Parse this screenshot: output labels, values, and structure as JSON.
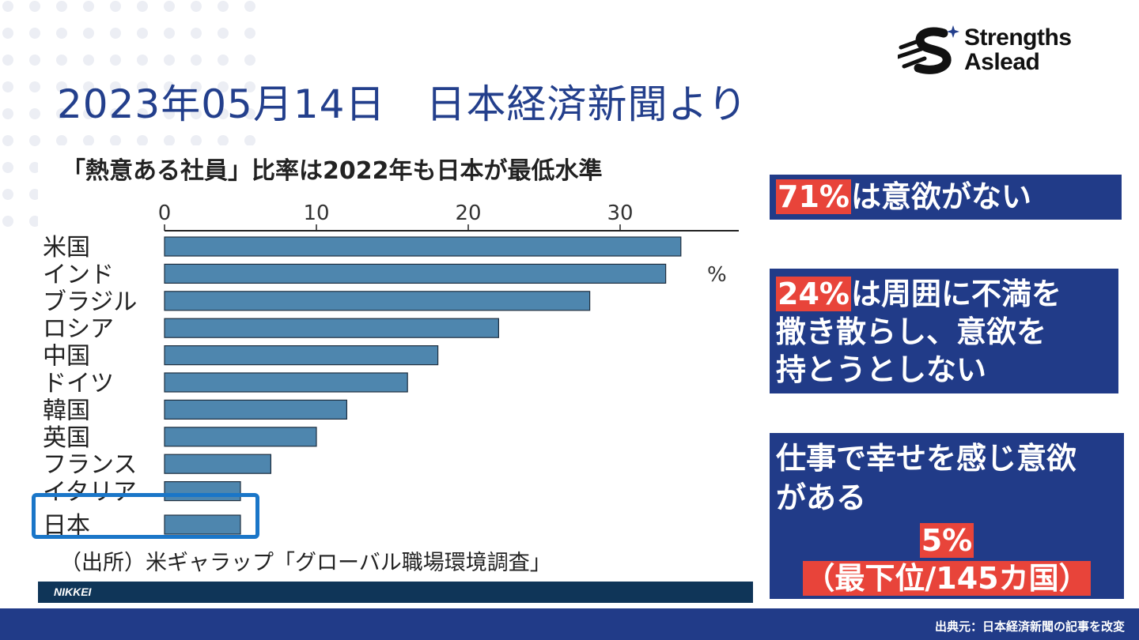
{
  "slide": {
    "title": "2023年05月14日　日本経済新聞より",
    "footer_note": "出典元：日本経済新聞の記事を改変"
  },
  "logo": {
    "line1": "Strengths",
    "line2": "Aslead",
    "icon": "strengths-aslead-logo-icon"
  },
  "chart_data": {
    "type": "bar",
    "orientation": "horizontal",
    "title": "「熱意ある社員」比率は2022年も日本が最低水準",
    "categories": [
      "米国",
      "インド",
      "ブラジル",
      "ロシア",
      "中国",
      "ドイツ",
      "韓国",
      "英国",
      "フランス",
      "イタリア",
      "日本"
    ],
    "values": [
      34,
      33,
      28,
      22,
      18,
      16,
      12,
      10,
      7,
      5,
      5
    ],
    "unit": "%",
    "ticks": [
      0,
      10,
      20,
      30
    ],
    "xlim": [
      0,
      38
    ],
    "bar_color": "#4e86ae",
    "grid": false,
    "highlighted_category": "日本",
    "source": "（出所）米ギャラップ「グローバル職場環境調査」",
    "publisher": "NIKKEI"
  },
  "callouts": [
    {
      "highlight": "71%",
      "text": "は意欲がない"
    },
    {
      "highlight": "24%",
      "line1": "は周囲に不満を",
      "line2": "撒き散らし、意欲を",
      "line3": "持とうとしない"
    },
    {
      "line1": "仕事で幸せを感じ意欲",
      "line2": "がある",
      "highlight": "5%",
      "line3": "（最下位/145カ国）"
    }
  ],
  "colors": {
    "title": "#233f8c",
    "callout_bg": "#213b88",
    "highlight_red": "#e8443a",
    "highlight_box": "#1a76c8",
    "nikkei_bar": "#0f3558"
  }
}
